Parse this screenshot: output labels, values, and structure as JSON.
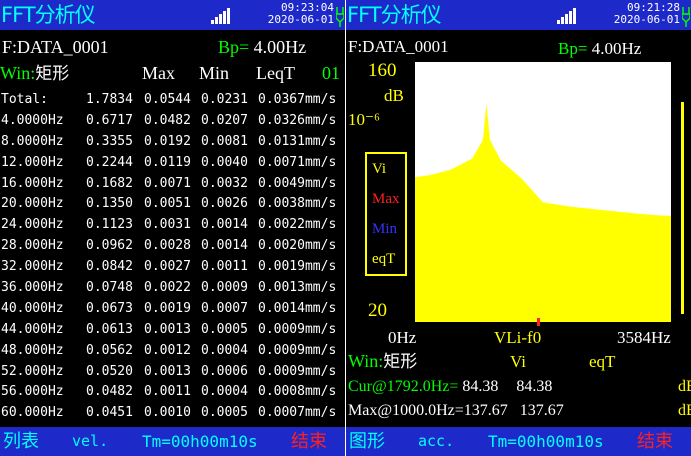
{
  "left_screen": {
    "title": "FFT分析仪",
    "datetime": {
      "time": "09:23:04",
      "date": "2020-06-01"
    },
    "file_label": "F:DATA_0001",
    "bp_label": "Bp=",
    "bp_value": "4.00Hz",
    "win_label": "Win:",
    "win_value": "矩形",
    "col_max": "Max",
    "col_min": "Min",
    "col_leqt": "LeqT",
    "page": "01",
    "rows": [
      {
        "freq": "Total:",
        "vi": "1.7834",
        "max": "0.0544",
        "min": "0.0231",
        "leq": "0.0367mm/s"
      },
      {
        "freq": "4.0000Hz",
        "vi": "0.6717",
        "max": "0.0482",
        "min": "0.0207",
        "leq": "0.0326mm/s"
      },
      {
        "freq": "8.0000Hz",
        "vi": "0.3355",
        "max": "0.0192",
        "min": "0.0081",
        "leq": "0.0131mm/s"
      },
      {
        "freq": "12.000Hz",
        "vi": "0.2244",
        "max": "0.0119",
        "min": "0.0040",
        "leq": "0.0071mm/s"
      },
      {
        "freq": "16.000Hz",
        "vi": "0.1682",
        "max": "0.0071",
        "min": "0.0032",
        "leq": "0.0049mm/s"
      },
      {
        "freq": "20.000Hz",
        "vi": "0.1350",
        "max": "0.0051",
        "min": "0.0026",
        "leq": "0.0038mm/s"
      },
      {
        "freq": "24.000Hz",
        "vi": "0.1123",
        "max": "0.0031",
        "min": "0.0014",
        "leq": "0.0022mm/s"
      },
      {
        "freq": "28.000Hz",
        "vi": "0.0962",
        "max": "0.0028",
        "min": "0.0014",
        "leq": "0.0020mm/s"
      },
      {
        "freq": "32.000Hz",
        "vi": "0.0842",
        "max": "0.0027",
        "min": "0.0011",
        "leq": "0.0019mm/s"
      },
      {
        "freq": "36.000Hz",
        "vi": "0.0748",
        "max": "0.0022",
        "min": "0.0009",
        "leq": "0.0013mm/s"
      },
      {
        "freq": "40.000Hz",
        "vi": "0.0673",
        "max": "0.0019",
        "min": "0.0007",
        "leq": "0.0014mm/s"
      },
      {
        "freq": "44.000Hz",
        "vi": "0.0613",
        "max": "0.0013",
        "min": "0.0005",
        "leq": "0.0009mm/s"
      },
      {
        "freq": "48.000Hz",
        "vi": "0.0562",
        "max": "0.0012",
        "min": "0.0004",
        "leq": "0.0009mm/s"
      },
      {
        "freq": "52.000Hz",
        "vi": "0.0520",
        "max": "0.0013",
        "min": "0.0006",
        "leq": "0.0009mm/s"
      },
      {
        "freq": "56.000Hz",
        "vi": "0.0482",
        "max": "0.0011",
        "min": "0.0004",
        "leq": "0.0008mm/s"
      },
      {
        "freq": "60.000Hz",
        "vi": "0.0451",
        "max": "0.0010",
        "min": "0.0005",
        "leq": "0.0007mm/s"
      }
    ],
    "bottom": {
      "mode": "列表",
      "unit": "vel.",
      "tm": "Tm=00h00m10s",
      "end": "结束"
    }
  },
  "right_screen": {
    "title": "FFT分析仪",
    "datetime": {
      "time": "09:21:28",
      "date": "2020-06-01"
    },
    "file_label": "F:DATA_0001",
    "bp_label": "Bp=",
    "bp_value": "4.00Hz",
    "y_top": "160",
    "y_unit": "dB",
    "y_exp": "10⁻⁶",
    "y_bottom": "20",
    "legend": [
      {
        "label": "Vi",
        "color": "#ffff00"
      },
      {
        "label": "Max",
        "color": "#ff2020"
      },
      {
        "label": "Min",
        "color": "#3333ff"
      },
      {
        "label": "eqT",
        "color": "#ffff00"
      }
    ],
    "x_left": "0Hz",
    "x_marker": "VLi-f0",
    "x_right": "3584Hz",
    "win_label": "Win:",
    "win_value": "矩形",
    "head_vi": "Vi",
    "head_eqt": "eqT",
    "cur_label": "Cur@1792.0Hz=",
    "cur_vi": "84.38",
    "cur_eqt": "84.38",
    "max_label": "Max@1000.0Hz=",
    "max_vi": "137.67",
    "max_eqt": "137.67",
    "unit_db": "dB",
    "bottom": {
      "mode": "图形",
      "unit": "acc.",
      "tm": "Tm=00h00m10s",
      "end": "结束"
    }
  },
  "chart_data": {
    "type": "area",
    "x_range": [
      0,
      3584
    ],
    "y_range": [
      20,
      160
    ],
    "y_unit": "dB",
    "series": [
      {
        "name": "Vi",
        "color": "#ffff00",
        "x": [
          0,
          200,
          500,
          800,
          950,
          1000,
          1050,
          1200,
          1500,
          1792,
          2200,
          2700,
          3200,
          3584
        ],
        "y": [
          98,
          99,
          102,
          108,
          118,
          137.67,
          118,
          107,
          97,
          84.38,
          82,
          80,
          78,
          77
        ]
      }
    ],
    "cursor_x": 1792
  }
}
